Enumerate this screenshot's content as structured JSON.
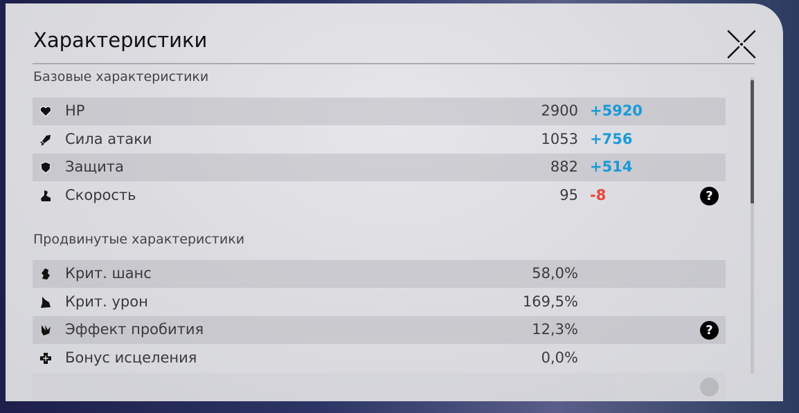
{
  "title": "Характеристики",
  "colors": {
    "positive": "#1a9ad8",
    "negative": "#e8463a"
  },
  "sections": {
    "basic": {
      "label": "Базовые характеристики",
      "rows": [
        {
          "icon": "heart-icon",
          "label": "HP",
          "value": "2900",
          "bonus": "+5920",
          "bonus_type": "positive",
          "help": false
        },
        {
          "icon": "sword-icon",
          "label": "Сила атаки",
          "value": "1053",
          "bonus": "+756",
          "bonus_type": "positive",
          "help": false
        },
        {
          "icon": "shield-icon",
          "label": "Защита",
          "value": "882",
          "bonus": "+514",
          "bonus_type": "positive",
          "help": false
        },
        {
          "icon": "boot-icon",
          "label": "Скорость",
          "value": "95",
          "bonus": "-8",
          "bonus_type": "negative",
          "help": true
        }
      ]
    },
    "advanced": {
      "label": "Продвинутые характеристики",
      "rows": [
        {
          "icon": "crit-chance-icon",
          "label": "Крит. шанс",
          "value": "58,0%",
          "help": false
        },
        {
          "icon": "crit-damage-icon",
          "label": "Крит. урон",
          "value": "169,5%",
          "help": false
        },
        {
          "icon": "penetration-icon",
          "label": "Эффект пробития",
          "value": "12,3%",
          "help": true
        },
        {
          "icon": "healing-cross-icon",
          "label": "Бонус исцеления",
          "value": "0,0%",
          "help": false
        }
      ]
    }
  },
  "help_glyph": "?"
}
